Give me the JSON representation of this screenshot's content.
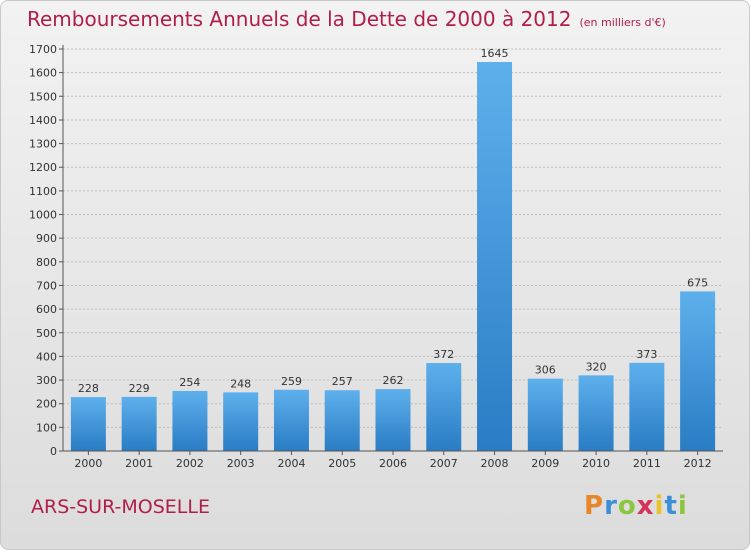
{
  "title": "Remboursements Annuels de la Dette de 2000 à 2012",
  "subtitle": "(en milliers d'€)",
  "commune": "ARS-SUR-MOSELLE",
  "logo": {
    "letters": [
      "P",
      "r",
      "o",
      "x",
      "i",
      "t",
      "i"
    ],
    "colors": [
      "#e8862a",
      "#3a8fd6",
      "#8cc63f",
      "#d6335a",
      "#e8c32a",
      "#3a8fd6",
      "#8cc63f"
    ]
  },
  "colors": {
    "bar_top": "#5eb0ec",
    "bar_bottom": "#2a7cc4",
    "title": "#b01e4a"
  },
  "chart_data": {
    "type": "bar",
    "title": "Remboursements Annuels de la Dette de 2000 à 2012",
    "categories": [
      "2000",
      "2001",
      "2002",
      "2003",
      "2004",
      "2005",
      "2006",
      "2007",
      "2008",
      "2009",
      "2010",
      "2011",
      "2012"
    ],
    "values": [
      228,
      229,
      254,
      248,
      259,
      257,
      262,
      372,
      1645,
      306,
      320,
      373,
      675
    ],
    "ylim": [
      0,
      1700
    ],
    "yticks": [
      0,
      100,
      200,
      300,
      400,
      500,
      600,
      700,
      800,
      900,
      1000,
      1100,
      1200,
      1300,
      1400,
      1500,
      1600,
      1700
    ],
    "grid": true,
    "legend": "none"
  }
}
